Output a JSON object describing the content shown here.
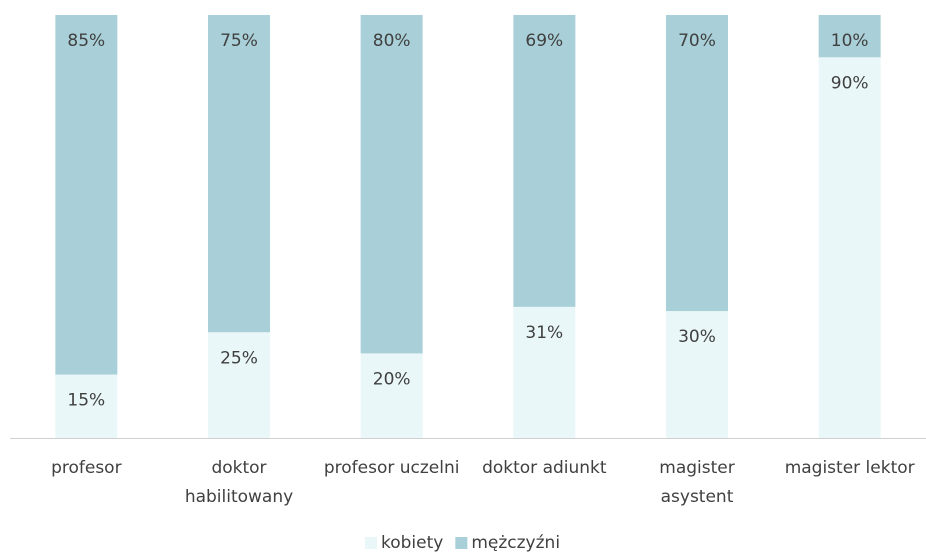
{
  "chart_data": {
    "type": "stacked_bar",
    "categories": [
      "profesor",
      "doktor habilitowany",
      "profesor uczelni",
      "doktor adiunkt",
      "magister asystent",
      "magister lektor"
    ],
    "series": [
      {
        "name": "kobiety",
        "color": "#eaf7f8",
        "values": [
          15,
          25,
          20,
          31,
          30,
          90
        ],
        "value_labels": [
          "15%",
          "25%",
          "20%",
          "31%",
          "30%",
          "90%"
        ]
      },
      {
        "name": "mężczyźni",
        "color": "#a9d0d8",
        "values": [
          85,
          75,
          80,
          69,
          70,
          10
        ],
        "value_labels": [
          "85%",
          "75%",
          "80%",
          "69%",
          "70%",
          "10%"
        ]
      }
    ],
    "legend": "bottom"
  }
}
